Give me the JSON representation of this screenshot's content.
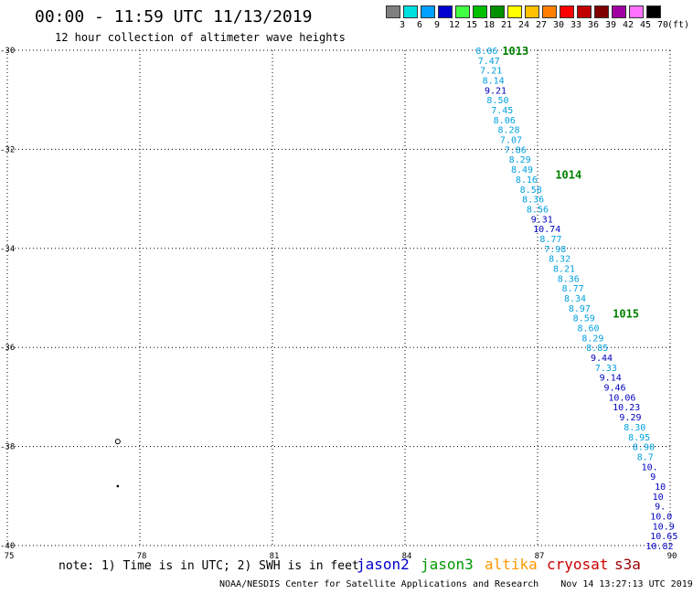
{
  "title": "00:00 - 11:59 UTC 11/13/2019",
  "subtitle": "12 hour collection of altimeter wave heights",
  "legend": {
    "unit": "(ft)",
    "colors": [
      "#7f7f7f",
      "#00e0e0",
      "#00a0ff",
      "#0000d0",
      "#40ff40",
      "#00c000",
      "#009000",
      "#ffff00",
      "#ffc000",
      "#ff8000",
      "#ff0000",
      "#c00000",
      "#800000",
      "#a000a0",
      "#ff70ff",
      "#000000"
    ],
    "labels": [
      "3",
      "6",
      "9",
      "12",
      "15",
      "18",
      "21",
      "24",
      "27",
      "30",
      "33",
      "36",
      "39",
      "42",
      "45",
      "70"
    ]
  },
  "note": "note: 1) Time is in UTC; 2) SWH is in feet",
  "satellites": [
    {
      "name": "jason2",
      "color": "#0000cc"
    },
    {
      "name": "jason3",
      "color": "#009900"
    },
    {
      "name": "altika",
      "color": "#ff9900"
    },
    {
      "name": "cryosat",
      "color": "#cc0000"
    },
    {
      "name": "s3a",
      "color": "#990000"
    }
  ],
  "credit": "NOAA/NESDIS Center for Satellite Applications and Research    Nov 14 13:27:13 UTC 2019",
  "chart_data": {
    "type": "scatter",
    "xlim": [
      75,
      90
    ],
    "ylim": [
      -40,
      -30
    ],
    "xticks": [
      "75",
      "78",
      "81",
      "84",
      "87",
      "90"
    ],
    "yticks": [
      "-30",
      "-32",
      "-34",
      "-36",
      "-38",
      "-40"
    ],
    "grid": true,
    "track_times": [
      {
        "label": "1013",
        "x": 86.2,
        "y": -30.0
      },
      {
        "label": "1014",
        "x": 87.4,
        "y": -32.5
      },
      {
        "label": "1015",
        "x": 88.7,
        "y": -35.3
      }
    ],
    "labeled_points": [
      {
        "x": 85.6,
        "y": -30.0,
        "v": "8.06",
        "c": "#00a0e0"
      },
      {
        "x": 85.65,
        "y": -30.2,
        "v": "7.47",
        "c": "#00a0e0"
      },
      {
        "x": 85.7,
        "y": -30.4,
        "v": "7.21",
        "c": "#00a0e0"
      },
      {
        "x": 85.75,
        "y": -30.6,
        "v": "8.14",
        "c": "#00a0e0"
      },
      {
        "x": 85.8,
        "y": -30.8,
        "v": "9.21",
        "c": "#0000c0"
      },
      {
        "x": 85.85,
        "y": -31.0,
        "v": "8.50",
        "c": "#00a0e0"
      },
      {
        "x": 85.95,
        "y": -31.2,
        "v": "7.45",
        "c": "#00a0e0"
      },
      {
        "x": 86.0,
        "y": -31.4,
        "v": "8.06",
        "c": "#00a0e0"
      },
      {
        "x": 86.1,
        "y": -31.6,
        "v": "8.28",
        "c": "#00a0e0"
      },
      {
        "x": 86.15,
        "y": -31.8,
        "v": "7.07",
        "c": "#00a0e0"
      },
      {
        "x": 86.25,
        "y": -32.0,
        "v": "7.86",
        "c": "#00a0e0"
      },
      {
        "x": 86.35,
        "y": -32.2,
        "v": "8.29",
        "c": "#00a0e0"
      },
      {
        "x": 86.4,
        "y": -32.4,
        "v": "8.49",
        "c": "#00a0e0"
      },
      {
        "x": 86.5,
        "y": -32.6,
        "v": "8.16",
        "c": "#00a0e0"
      },
      {
        "x": 86.6,
        "y": -32.8,
        "v": "8.58",
        "c": "#00a0e0"
      },
      {
        "x": 86.65,
        "y": -33.0,
        "v": "8.36",
        "c": "#00a0e0"
      },
      {
        "x": 86.75,
        "y": -33.2,
        "v": "8.56",
        "c": "#00a0e0"
      },
      {
        "x": 86.85,
        "y": -33.4,
        "v": "9.31",
        "c": "#0000c0"
      },
      {
        "x": 86.9,
        "y": -33.6,
        "v": "10.74",
        "c": "#0000c0"
      },
      {
        "x": 87.05,
        "y": -33.8,
        "v": "8.77",
        "c": "#00a0e0"
      },
      {
        "x": 87.15,
        "y": -34.0,
        "v": "7.98",
        "c": "#00a0e0"
      },
      {
        "x": 87.25,
        "y": -34.2,
        "v": "8.32",
        "c": "#00a0e0"
      },
      {
        "x": 87.35,
        "y": -34.4,
        "v": "8.21",
        "c": "#00a0e0"
      },
      {
        "x": 87.45,
        "y": -34.6,
        "v": "8.36",
        "c": "#00a0e0"
      },
      {
        "x": 87.55,
        "y": -34.8,
        "v": "8.77",
        "c": "#00a0e0"
      },
      {
        "x": 87.6,
        "y": -35.0,
        "v": "8.34",
        "c": "#00a0e0"
      },
      {
        "x": 87.7,
        "y": -35.2,
        "v": "8.97",
        "c": "#00a0e0"
      },
      {
        "x": 87.8,
        "y": -35.4,
        "v": "8.59",
        "c": "#00a0e0"
      },
      {
        "x": 87.9,
        "y": -35.6,
        "v": "8.60",
        "c": "#00a0e0"
      },
      {
        "x": 88.0,
        "y": -35.8,
        "v": "8.29",
        "c": "#00a0e0"
      },
      {
        "x": 88.1,
        "y": -36.0,
        "v": "8.85",
        "c": "#00a0e0"
      },
      {
        "x": 88.2,
        "y": -36.2,
        "v": "9.44",
        "c": "#0000c0"
      },
      {
        "x": 88.3,
        "y": -36.4,
        "v": "7.33",
        "c": "#00a0e0"
      },
      {
        "x": 88.4,
        "y": -36.6,
        "v": "9.14",
        "c": "#0000c0"
      },
      {
        "x": 88.5,
        "y": -36.8,
        "v": "9.46",
        "c": "#0000c0"
      },
      {
        "x": 88.6,
        "y": -37.0,
        "v": "10.06",
        "c": "#0000c0"
      },
      {
        "x": 88.7,
        "y": -37.2,
        "v": "10.23",
        "c": "#0000c0"
      },
      {
        "x": 88.85,
        "y": -37.4,
        "v": "9.29",
        "c": "#0000c0"
      },
      {
        "x": 88.95,
        "y": -37.6,
        "v": "8.30",
        "c": "#00a0e0"
      },
      {
        "x": 89.05,
        "y": -37.8,
        "v": "8.95",
        "c": "#00a0e0"
      },
      {
        "x": 89.15,
        "y": -38.0,
        "v": "8.90",
        "c": "#00a0e0"
      },
      {
        "x": 89.25,
        "y": -38.2,
        "v": "8.7",
        "c": "#00a0e0"
      },
      {
        "x": 89.35,
        "y": -38.4,
        "v": "10.",
        "c": "#0000c0"
      },
      {
        "x": 89.55,
        "y": -38.6,
        "v": "9",
        "c": "#0000c0"
      },
      {
        "x": 89.65,
        "y": -38.8,
        "v": "10",
        "c": "#0000c0"
      },
      {
        "x": 89.6,
        "y": -39.0,
        "v": "10",
        "c": "#0000c0"
      },
      {
        "x": 89.65,
        "y": -39.2,
        "v": "9.",
        "c": "#0000c0"
      },
      {
        "x": 89.55,
        "y": -39.4,
        "v": "10.0",
        "c": "#0000c0"
      },
      {
        "x": 89.6,
        "y": -39.6,
        "v": "10.9",
        "c": "#0000c0"
      },
      {
        "x": 89.55,
        "y": -39.8,
        "v": "10.65",
        "c": "#0000c0"
      },
      {
        "x": 89.45,
        "y": -40.0,
        "v": "10.82",
        "c": "#0000c0"
      }
    ],
    "markers": [
      {
        "x": 77.5,
        "y": -37.9,
        "shape": "circle"
      },
      {
        "x": 77.5,
        "y": -38.8,
        "shape": "dot"
      }
    ]
  }
}
